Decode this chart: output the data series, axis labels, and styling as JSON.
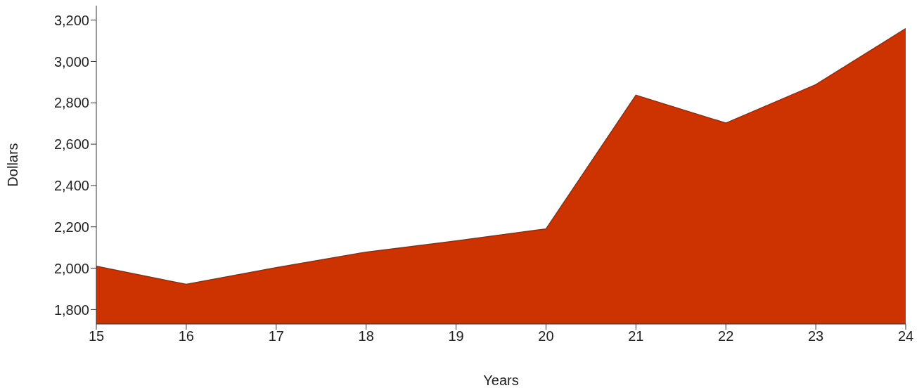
{
  "chart_data": {
    "type": "area",
    "xlabel": "Years",
    "ylabel": "Dollars",
    "x": [
      15,
      16,
      17,
      18,
      19,
      20,
      21,
      22,
      23,
      24
    ],
    "series": [
      {
        "color": "#cc3300",
        "values": [
          2010,
          1922,
          2003,
          2078,
          2132,
          2190,
          2837,
          2702,
          2888,
          3159
        ]
      }
    ],
    "xlim": [
      15,
      24
    ],
    "xticks": [
      15,
      16,
      17,
      18,
      19,
      20,
      21,
      22,
      23,
      24
    ],
    "ylim": [
      1730,
      3270
    ],
    "yticks": [
      {
        "value": 1800,
        "label": "1,800"
      },
      {
        "value": 2000,
        "label": "2,000"
      },
      {
        "value": 2200,
        "label": "2,200"
      },
      {
        "value": 2400,
        "label": "2,400"
      },
      {
        "value": 2600,
        "label": "2,600"
      },
      {
        "value": 2800,
        "label": "2,800"
      },
      {
        "value": 3000,
        "label": "3,000"
      },
      {
        "value": 3200,
        "label": "3,200"
      }
    ],
    "grid": false,
    "legend": false
  }
}
